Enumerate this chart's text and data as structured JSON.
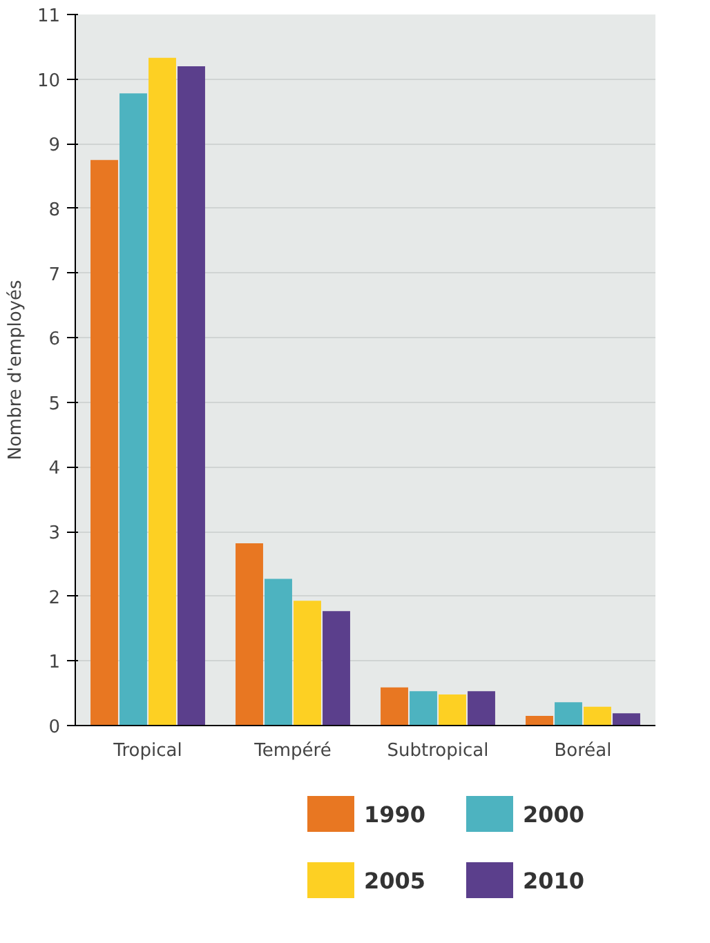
{
  "chart_data": {
    "type": "bar",
    "ylabel": "Nombre d'employés",
    "categories": [
      "Tropical",
      "Tempéré",
      "Subtropical",
      "Boréal"
    ],
    "series": [
      {
        "name": "1990",
        "color": "#e87722",
        "values": [
          8.75,
          2.82,
          0.59,
          0.15
        ]
      },
      {
        "name": "2000",
        "color": "#4db3c0",
        "values": [
          9.78,
          2.27,
          0.53,
          0.36
        ]
      },
      {
        "name": "2005",
        "color": "#fdd023",
        "values": [
          10.33,
          1.93,
          0.48,
          0.29
        ]
      },
      {
        "name": "2010",
        "color": "#5b3f8c",
        "values": [
          10.2,
          1.77,
          0.53,
          0.19
        ]
      }
    ],
    "ylim": [
      0,
      11
    ],
    "yticks": [
      0,
      1,
      2,
      3,
      4,
      5,
      6,
      7,
      8,
      9,
      10,
      11
    ],
    "grid": "y",
    "legend": "bottom"
  }
}
